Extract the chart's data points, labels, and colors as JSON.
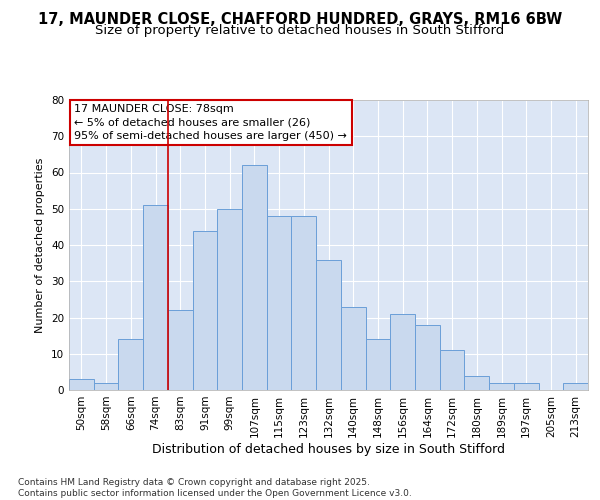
{
  "title1": "17, MAUNDER CLOSE, CHAFFORD HUNDRED, GRAYS, RM16 6BW",
  "title2": "Size of property relative to detached houses in South Stifford",
  "xlabel": "Distribution of detached houses by size in South Stifford",
  "ylabel": "Number of detached properties",
  "categories": [
    "50sqm",
    "58sqm",
    "66sqm",
    "74sqm",
    "83sqm",
    "91sqm",
    "99sqm",
    "107sqm",
    "115sqm",
    "123sqm",
    "132sqm",
    "140sqm",
    "148sqm",
    "156sqm",
    "164sqm",
    "172sqm",
    "180sqm",
    "189sqm",
    "197sqm",
    "205sqm",
    "213sqm"
  ],
  "values": [
    3,
    2,
    14,
    51,
    22,
    44,
    50,
    62,
    48,
    48,
    36,
    23,
    14,
    21,
    18,
    11,
    4,
    2,
    2,
    0,
    2
  ],
  "bar_color": "#c9d9ee",
  "bar_edge_color": "#6a9fd8",
  "vline_x_index": 3.5,
  "vline_color": "#cc0000",
  "annotation_text": "17 MAUNDER CLOSE: 78sqm\n← 5% of detached houses are smaller (26)\n95% of semi-detached houses are larger (450) →",
  "annotation_box_facecolor": "#ffffff",
  "annotation_box_edgecolor": "#cc0000",
  "ylim": [
    0,
    80
  ],
  "yticks": [
    0,
    10,
    20,
    30,
    40,
    50,
    60,
    70,
    80
  ],
  "plot_bg": "#dce6f5",
  "fig_bg": "#ffffff",
  "footer": "Contains HM Land Registry data © Crown copyright and database right 2025.\nContains public sector information licensed under the Open Government Licence v3.0.",
  "title1_fontsize": 10.5,
  "title2_fontsize": 9.5,
  "xlabel_fontsize": 9,
  "ylabel_fontsize": 8,
  "tick_fontsize": 7.5,
  "ann_fontsize": 8,
  "footer_fontsize": 6.5
}
